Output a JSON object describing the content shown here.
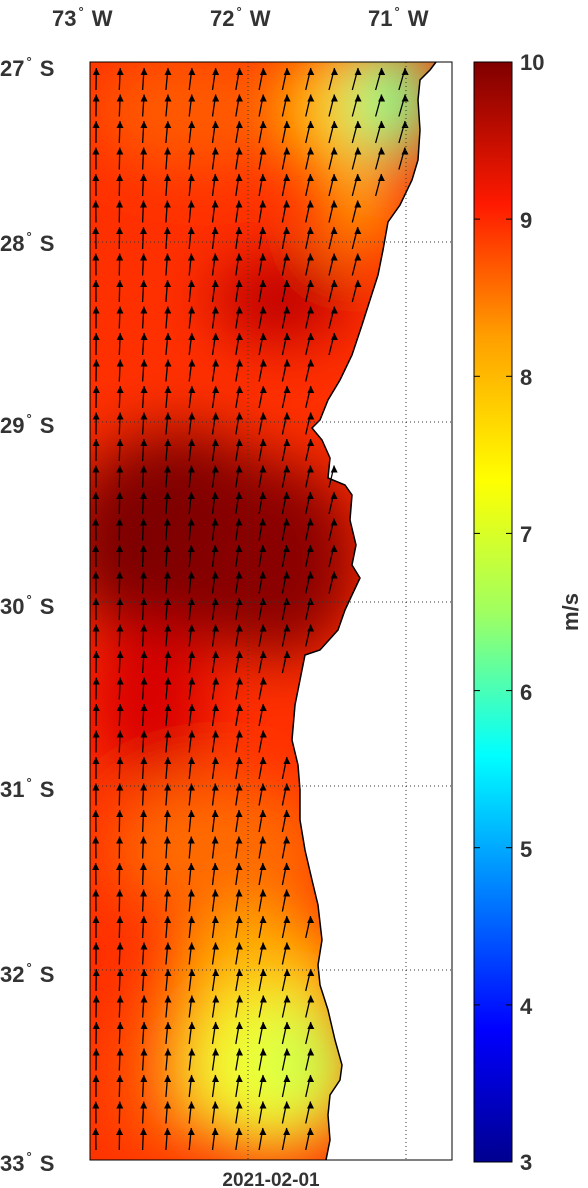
{
  "map": {
    "lon_labels": [
      {
        "deg": "73",
        "hemi": "W"
      },
      {
        "deg": "72",
        "hemi": "W"
      },
      {
        "deg": "71",
        "hemi": "W"
      }
    ],
    "lat_labels": [
      {
        "deg": "27",
        "hemi": "S"
      },
      {
        "deg": "28",
        "hemi": "S"
      },
      {
        "deg": "29",
        "hemi": "S"
      },
      {
        "deg": "30",
        "hemi": "S"
      },
      {
        "deg": "31",
        "hemi": "S"
      },
      {
        "deg": "32",
        "hemi": "S"
      },
      {
        "deg": "33",
        "hemi": "S"
      }
    ],
    "degree_symbol": "°",
    "date": "2021-02-01",
    "lon_range": [
      -73,
      -70.8
    ],
    "lat_range": [
      -33,
      -27
    ],
    "field": "wind speed with direction arrows",
    "wind_direction": "northward (from south)",
    "land_color": "#ffffff",
    "grid": "dotted"
  },
  "colorbar": {
    "unit_label": "m/s",
    "ticks": [
      "10",
      "9",
      "8",
      "7",
      "6",
      "5",
      "4",
      "3"
    ],
    "range": [
      3,
      10
    ],
    "colormap": "jet"
  }
}
